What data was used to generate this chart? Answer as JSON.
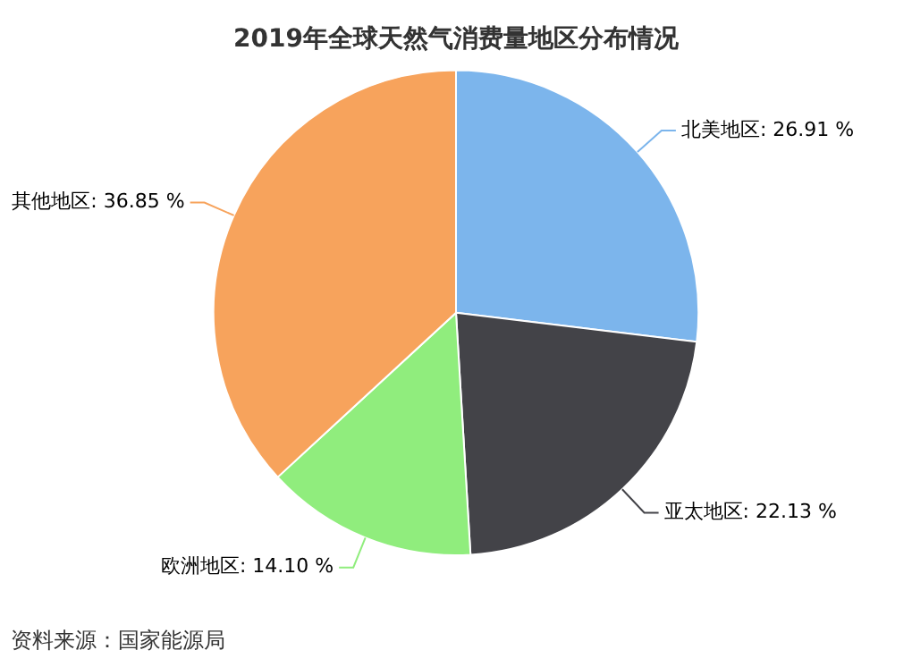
{
  "chart_data": {
    "type": "pie",
    "title": "2019年全球天然气消费量地区分布情况",
    "categories": [
      "北美地区",
      "亚太地区",
      "欧洲地区",
      "其他地区"
    ],
    "values": [
      26.91,
      22.13,
      14.1,
      36.85
    ],
    "value_labels": [
      "26.91 %",
      "22.13 %",
      "14.10 %",
      "36.85 %"
    ],
    "colors": [
      "#7cb5ec",
      "#434348",
      "#90ed7d",
      "#f7a35c"
    ],
    "legend": false,
    "annotations": [
      "资料来源：国家能源局"
    ]
  }
}
